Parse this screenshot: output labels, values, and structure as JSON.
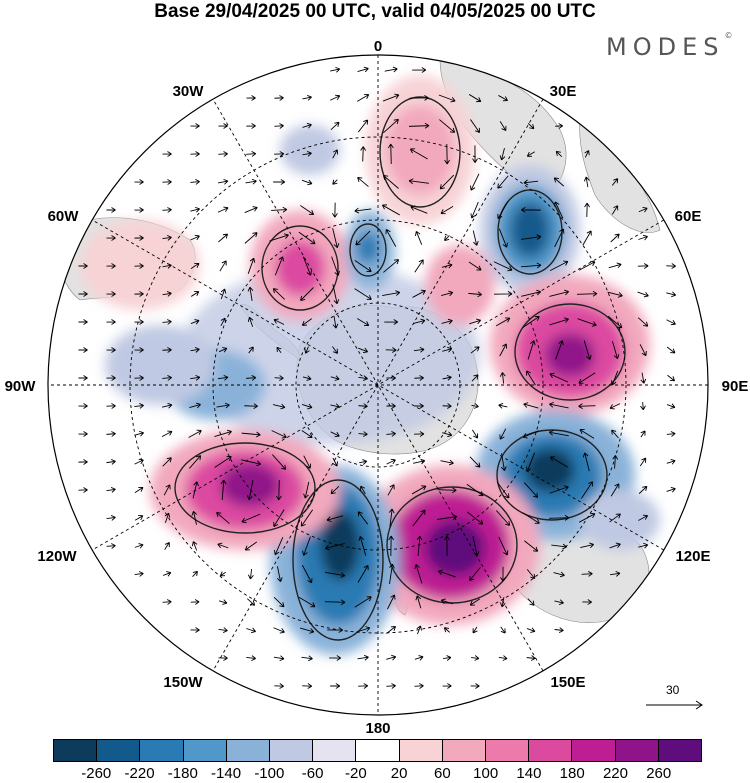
{
  "title": "Base 29/04/2025 00 UTC, valid 04/05/2025 00 UTC",
  "logo": "MODES",
  "logo_mark": "©",
  "longitude_labels": {
    "n": "0",
    "e30": "30E",
    "e60": "60E",
    "e90": "90E",
    "e120": "120E",
    "e150": "150E",
    "s": "180",
    "w150": "150W",
    "w120": "120W",
    "w90": "90W",
    "w60": "60W",
    "w30": "30W"
  },
  "reference_vector": {
    "value": "30"
  },
  "colorbar": {
    "colors": [
      "#0d3b5c",
      "#135a8c",
      "#2a7ab3",
      "#4f98c9",
      "#8ab2d9",
      "#c0c9e3",
      "#e4e3ef",
      "#ffffff",
      "#f7d3d6",
      "#f2a8bd",
      "#ec7aab",
      "#dc4aa0",
      "#bd1e93",
      "#901489",
      "#5f0d7c"
    ],
    "tick_labels": [
      "-260",
      "-220",
      "-180",
      "-140",
      "-100",
      "-60",
      "-20",
      "20",
      "60",
      "100",
      "140",
      "180",
      "220",
      "260"
    ]
  },
  "colors": {
    "land": "#e2e2e2",
    "grid": "#000000"
  }
}
